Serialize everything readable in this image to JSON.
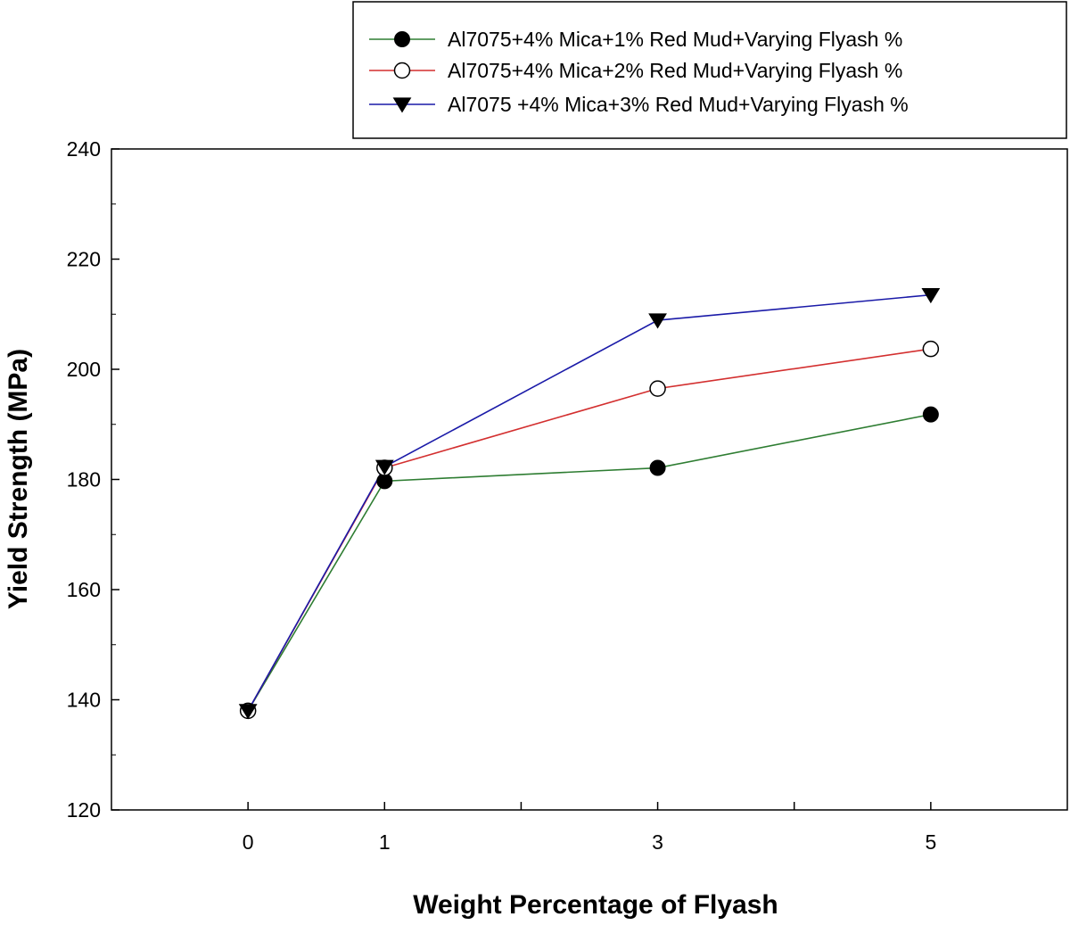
{
  "chart_data": {
    "type": "line",
    "title": "",
    "xlabel": "Weight Percentage of Flyash",
    "ylabel": "Yield Strength (MPa)",
    "x": [
      0,
      1,
      3,
      5
    ],
    "x_ticks": [
      "0",
      "1",
      "3",
      "5"
    ],
    "xlim": [
      -1,
      6
    ],
    "ylim": [
      120,
      240
    ],
    "y_ticks": [
      "120",
      "140",
      "160",
      "180",
      "200",
      "220",
      "240"
    ],
    "grid": false,
    "legend_position": "top-right, above plot",
    "series": [
      {
        "name": "Al7075+4% Mica+1% Red Mud+Varying Flyash %",
        "values": [
          138,
          179.7,
          182.1,
          191.8
        ],
        "color": "#2e7d32",
        "marker": "filled-circle"
      },
      {
        "name": "Al7075+4% Mica+2% Red Mud+Varying Flyash %",
        "values": [
          138,
          182.1,
          196.5,
          203.7
        ],
        "color": "#d32f2f",
        "marker": "open-circle"
      },
      {
        "name": "Al7075 +4% Mica+3% Red Mud+Varying Flyash %",
        "values": [
          138,
          182.3,
          208.9,
          213.5
        ],
        "color": "#1a1aa8",
        "marker": "filled-triangle-down"
      }
    ]
  }
}
